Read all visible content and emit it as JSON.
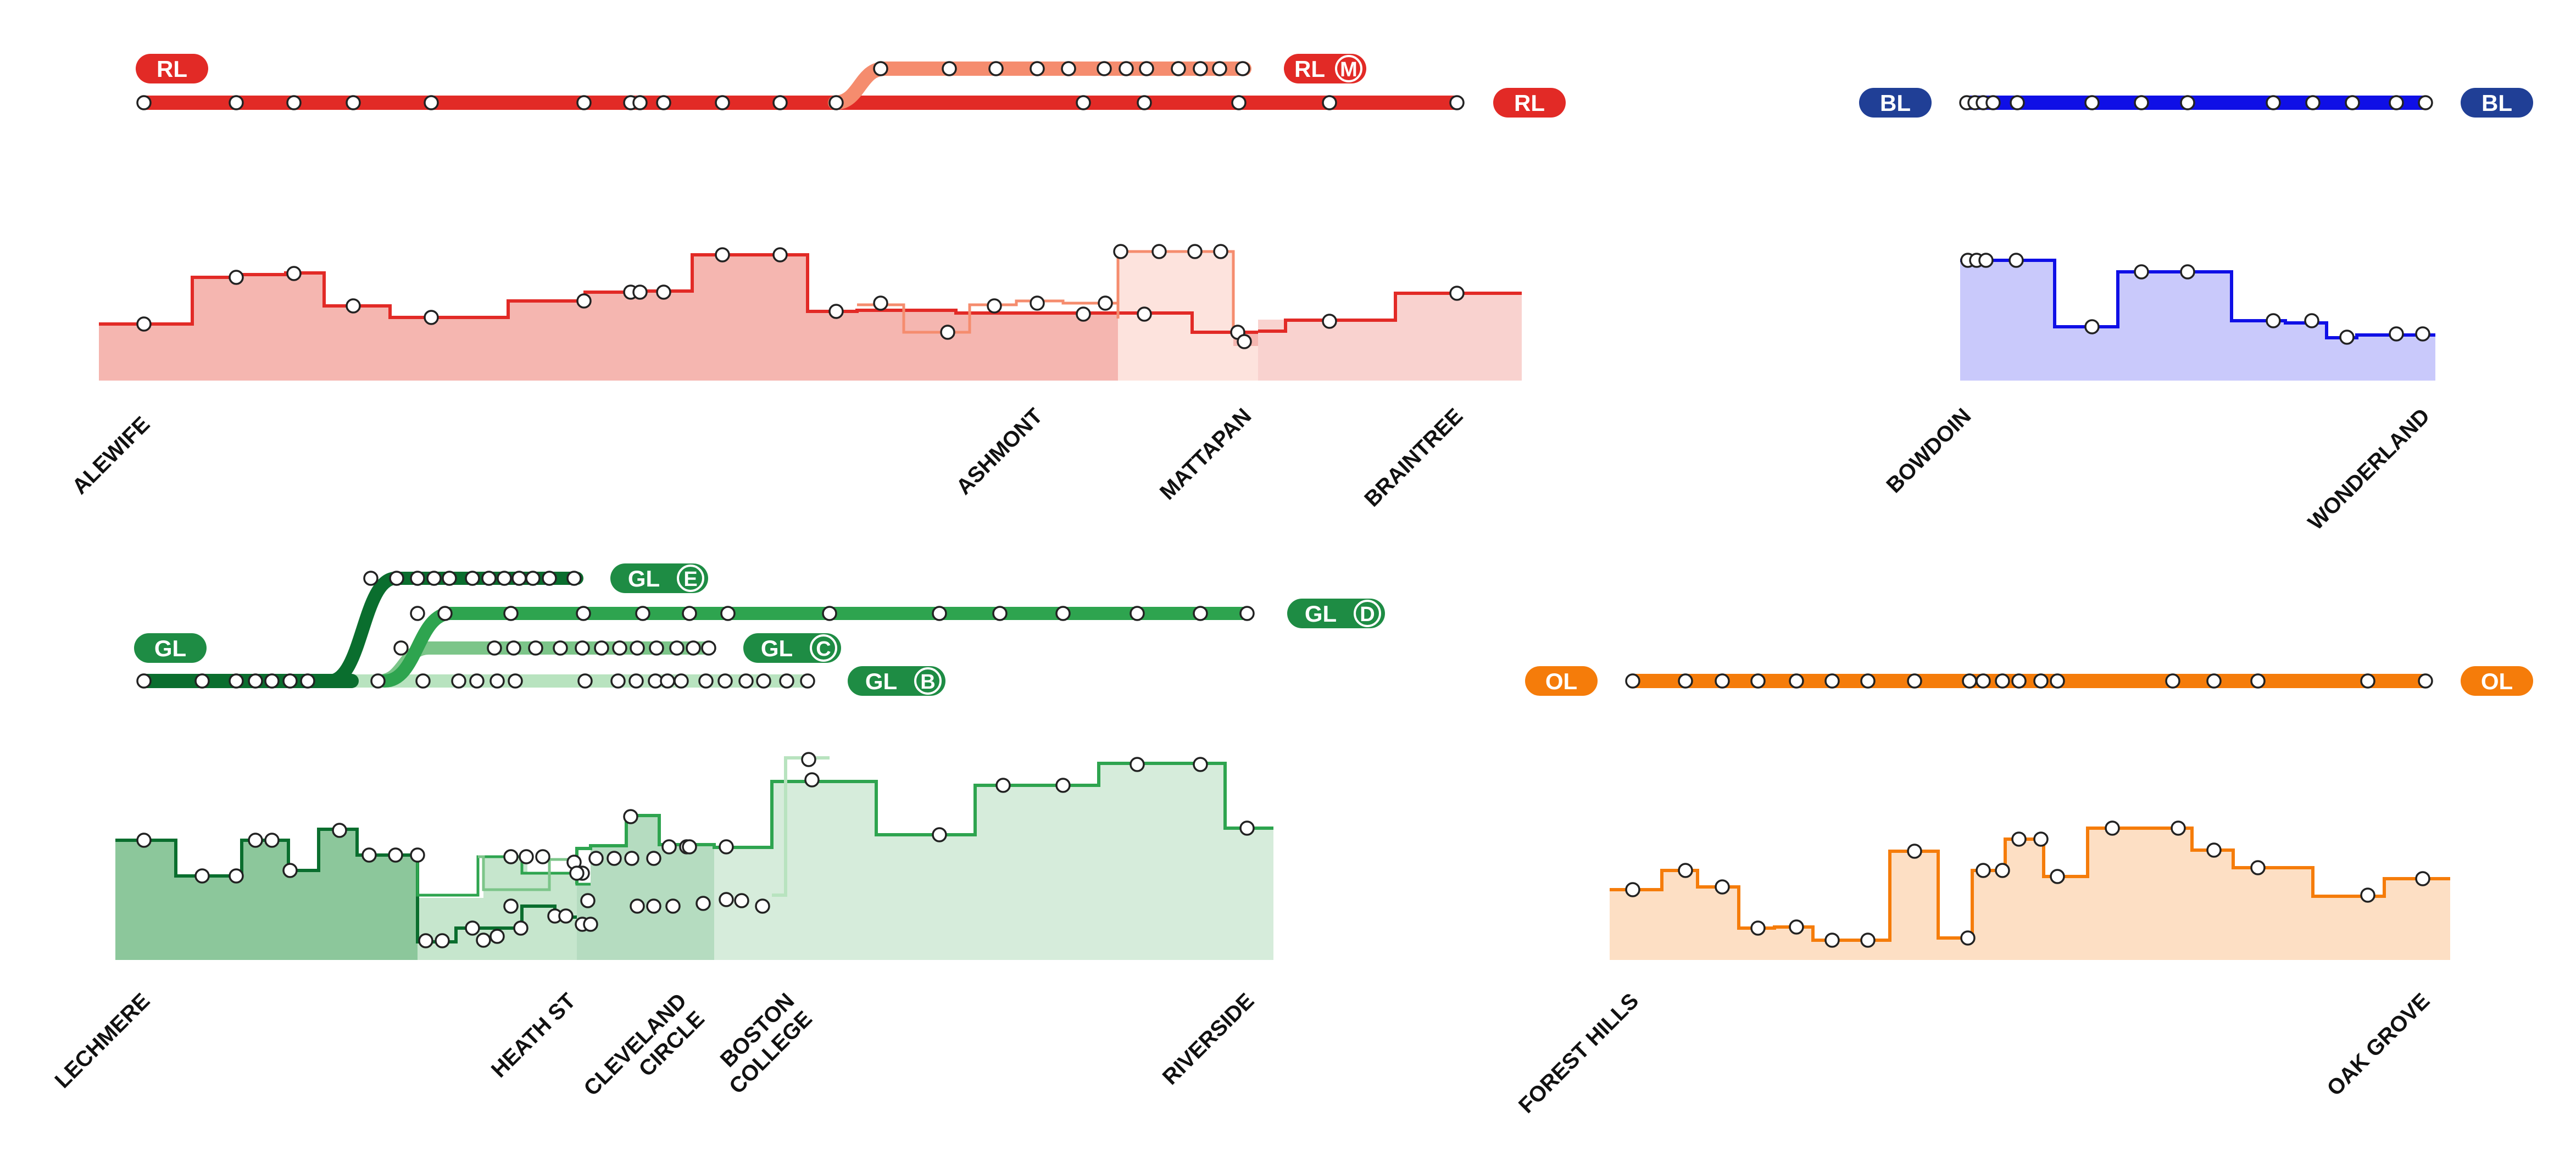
{
  "colors": {
    "red": "#e22a26",
    "red_light": "#f58c6e",
    "red_fill": "#f5b6b0",
    "red_fill_light": "#f9d2cf",
    "blue": "#0f0fe6",
    "blue_fill": "#c9c9fb",
    "blue_badge": "#203f96",
    "green_dark": "#0a6e2e",
    "green_mid": "#2ea44f",
    "green_light": "#7cc589",
    "green_pale": "#b8e3bf",
    "green_badge": "#1e8c44",
    "green_fill_dark": "#8cc79b",
    "green_fill_mid": "#b5dcc0",
    "green_fill_light": "#d6ecdb",
    "orange": "#f57c0a",
    "orange_fill": "#fddfc4",
    "station": "#ffffff"
  },
  "legend": {
    "red": "RL",
    "red_branch": "M",
    "blue": "BL",
    "orange": "OL",
    "green": "GL",
    "green_b": "B",
    "green_c": "C",
    "green_d": "D",
    "green_e": "E"
  },
  "chart_data": [
    {
      "type": "area",
      "line": "Red Line",
      "terminals": [
        "ALEWIFE",
        "ASHMONT",
        "MATTAPAN",
        "BRAINTREE"
      ],
      "series": [
        {
          "trunk_steps": [
            2.7,
            1.3,
            1.5,
            0.9,
            0.7,
            2.1,
            2.5,
            1.6,
            2.4,
            1.3,
            0.8
          ]
        },
        {
          "ashmont_steps": [
            0.9,
            1.2,
            1.0,
            0.7,
            1.4,
            1.5
          ]
        },
        {
          "mattapan_steps": [
            3.2,
            3.2,
            3.2,
            3.2,
            1.0,
            0.8
          ]
        },
        {
          "braintree_steps": [
            1.3,
            1.1,
            1.1,
            1.5,
            2.1
          ]
        }
      ]
    },
    {
      "type": "area",
      "line": "Blue Line",
      "terminals": [
        "BOWDOIN",
        "WONDERLAND"
      ],
      "series": [
        {
          "steps": [
            2.4,
            1.7,
            1.9,
            2.8,
            2.8,
            1.6,
            1.5,
            0.9,
            1.0
          ]
        }
      ]
    },
    {
      "type": "area",
      "line": "Green Line",
      "terminals": [
        "LECHMERE",
        "HEATH ST",
        "CLEVELAND CIRCLE",
        "BOSTON COLLEGE",
        "RIVERSIDE"
      ],
      "series": [
        {
          "trunk_steps": [
            2.5,
            1.8,
            2.4,
            1.9,
            2.5,
            2.2,
            2.2
          ]
        },
        {
          "d_steps": [
            2.1,
            2.7,
            2.7,
            2.4,
            3.0,
            3.0,
            3.7,
            3.7,
            2.4
          ]
        },
        {
          "e_steps": [
            0.4,
            0.6,
            1.0,
            0.9,
            1.5,
            1.8
          ]
        },
        {
          "c_steps": [
            1.7,
            1.8,
            2.1,
            2.3,
            2.3,
            2.2,
            2.4
          ]
        },
        {
          "b_steps": [
            1.1,
            1.0,
            1.3,
            1.6,
            2.1,
            2.5,
            3.3
          ]
        }
      ]
    },
    {
      "type": "area",
      "line": "Orange Line",
      "terminals": [
        "FOREST HILLS",
        "OAK GROVE"
      ],
      "series": [
        {
          "steps": [
            1.5,
            1.7,
            1.4,
            0.7,
            0.8,
            0.4,
            0.5,
            2.4,
            0.3,
            1.7,
            2.1,
            1.8,
            2.7,
            2.6,
            2.1,
            1.9,
            1.3,
            1.5
          ]
        }
      ]
    }
  ]
}
